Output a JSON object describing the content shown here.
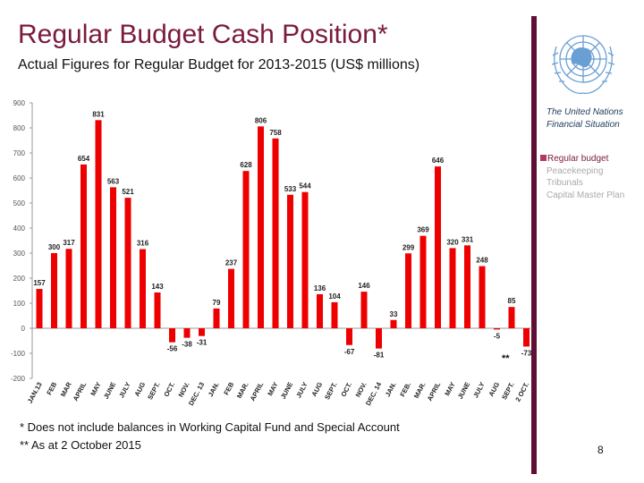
{
  "header": {
    "title": "Regular Budget Cash Position*",
    "subtitle": "Actual Figures for Regular Budget for 2013-2015 (US$ millions)"
  },
  "side_panel": {
    "title_line1": "The United Nations",
    "title_line2": "Financial Situation",
    "legend": [
      {
        "label": "Regular budget",
        "active": true
      },
      {
        "label": "Peacekeeping",
        "active": false
      },
      {
        "label": "Tribunals",
        "active": false
      },
      {
        "label": "Capital Master Plan",
        "active": false
      }
    ],
    "logo_icon": "un-emblem-icon"
  },
  "footnotes": {
    "line1": "* Does not include balances in Working Capital Fund and Special Account",
    "line2": "** As at 2 October 2015",
    "marker": "**"
  },
  "page_number": "8",
  "colors": {
    "bar": "#ee0000",
    "title": "#7a1a3e",
    "accent_bar": "#5e0f33"
  },
  "chart_data": {
    "type": "bar",
    "title": "",
    "xlabel": "",
    "ylabel": "",
    "ylim": [
      -200,
      900
    ],
    "yticks": [
      900,
      800,
      700,
      600,
      500,
      400,
      300,
      200,
      100,
      0,
      -100,
      -200
    ],
    "grid": false,
    "legend": "none",
    "categories": [
      "JAN.13",
      "FEB",
      "MAR",
      "APRIL",
      "MAY",
      "JUNE",
      "JULY",
      "AUG",
      "SEPT.",
      "OCT.",
      "NOV.",
      "DEC. 13",
      "JAN.",
      "FEB",
      "MAR.",
      "APRIL",
      "MAY",
      "JUNE",
      "JULY",
      "AUG",
      "SEPT.",
      "OCT.",
      "NOV.",
      "DEC. 14",
      "JAN.",
      "FEB.",
      "MAR.",
      "APRIL",
      "MAY",
      "JUNE",
      "JULY",
      "AUG",
      "SEPT.",
      "2 OCT."
    ],
    "values": [
      157,
      300,
      317,
      654,
      831,
      563,
      521,
      316,
      143,
      -56,
      -38,
      -31,
      79,
      237,
      628,
      806,
      758,
      533,
      544,
      136,
      104,
      -67,
      146,
      -81,
      33,
      299,
      369,
      646,
      320,
      331,
      248,
      -5,
      85,
      -73
    ]
  }
}
